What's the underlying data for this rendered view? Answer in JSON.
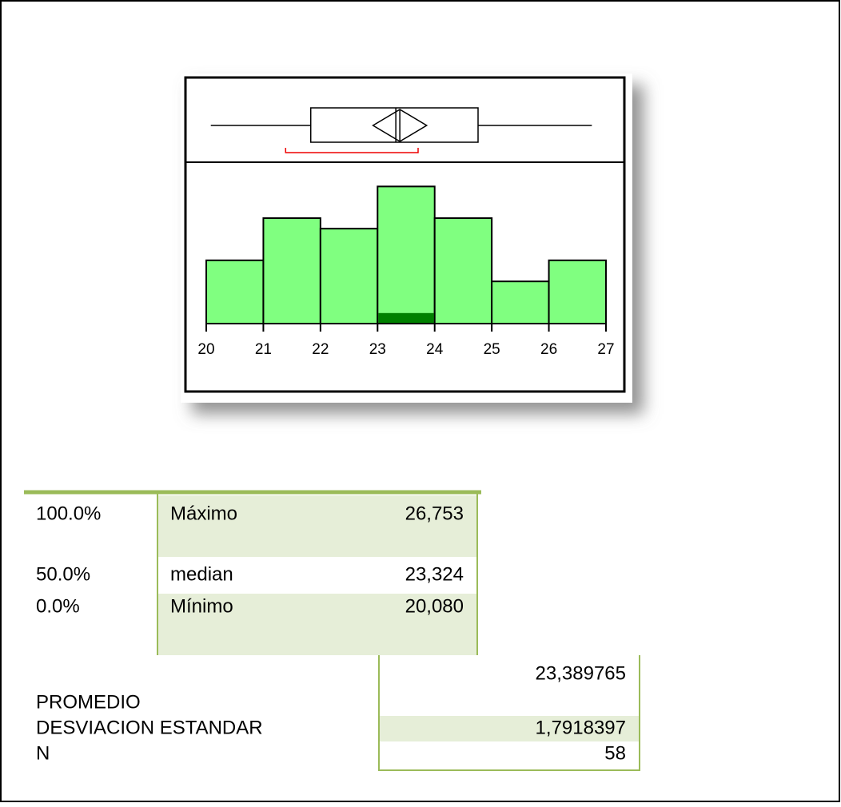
{
  "chart_data": [
    {
      "type": "box",
      "min": 20.08,
      "q1": 21.83,
      "median": 23.32,
      "q3": 24.76,
      "max": 26.753,
      "mean": 23.39,
      "mean_ci": [
        22.92,
        23.86
      ],
      "shortest_half": [
        21.39,
        23.71
      ],
      "xlim": [
        20,
        27
      ]
    },
    {
      "type": "histogram",
      "bins": [
        20,
        21,
        22,
        23,
        24,
        25,
        26,
        27
      ],
      "counts": [
        6,
        10,
        9,
        13,
        10,
        4,
        6
      ],
      "highlight": {
        "bin": 3,
        "count": 1
      },
      "color": "#80ff80",
      "highlight_color": "#008000",
      "xlim": [
        20,
        27
      ],
      "ylim": [
        0,
        15.3
      ],
      "xticks": [
        20,
        21,
        22,
        23,
        24,
        25,
        26,
        27
      ]
    }
  ],
  "quantiles": {
    "rows": [
      [
        "100.0%",
        "Máximo",
        "26,753"
      ],
      [
        "50.0%",
        "median",
        "23,324"
      ],
      [
        "0.0%",
        "Mínimo",
        "20,080"
      ]
    ]
  },
  "moments": {
    "rows": [
      [
        "PROMEDIO",
        "23,389765"
      ],
      [
        "DESVIACION ESTANDAR",
        "1,7918397"
      ],
      [
        "N",
        "58"
      ]
    ]
  }
}
